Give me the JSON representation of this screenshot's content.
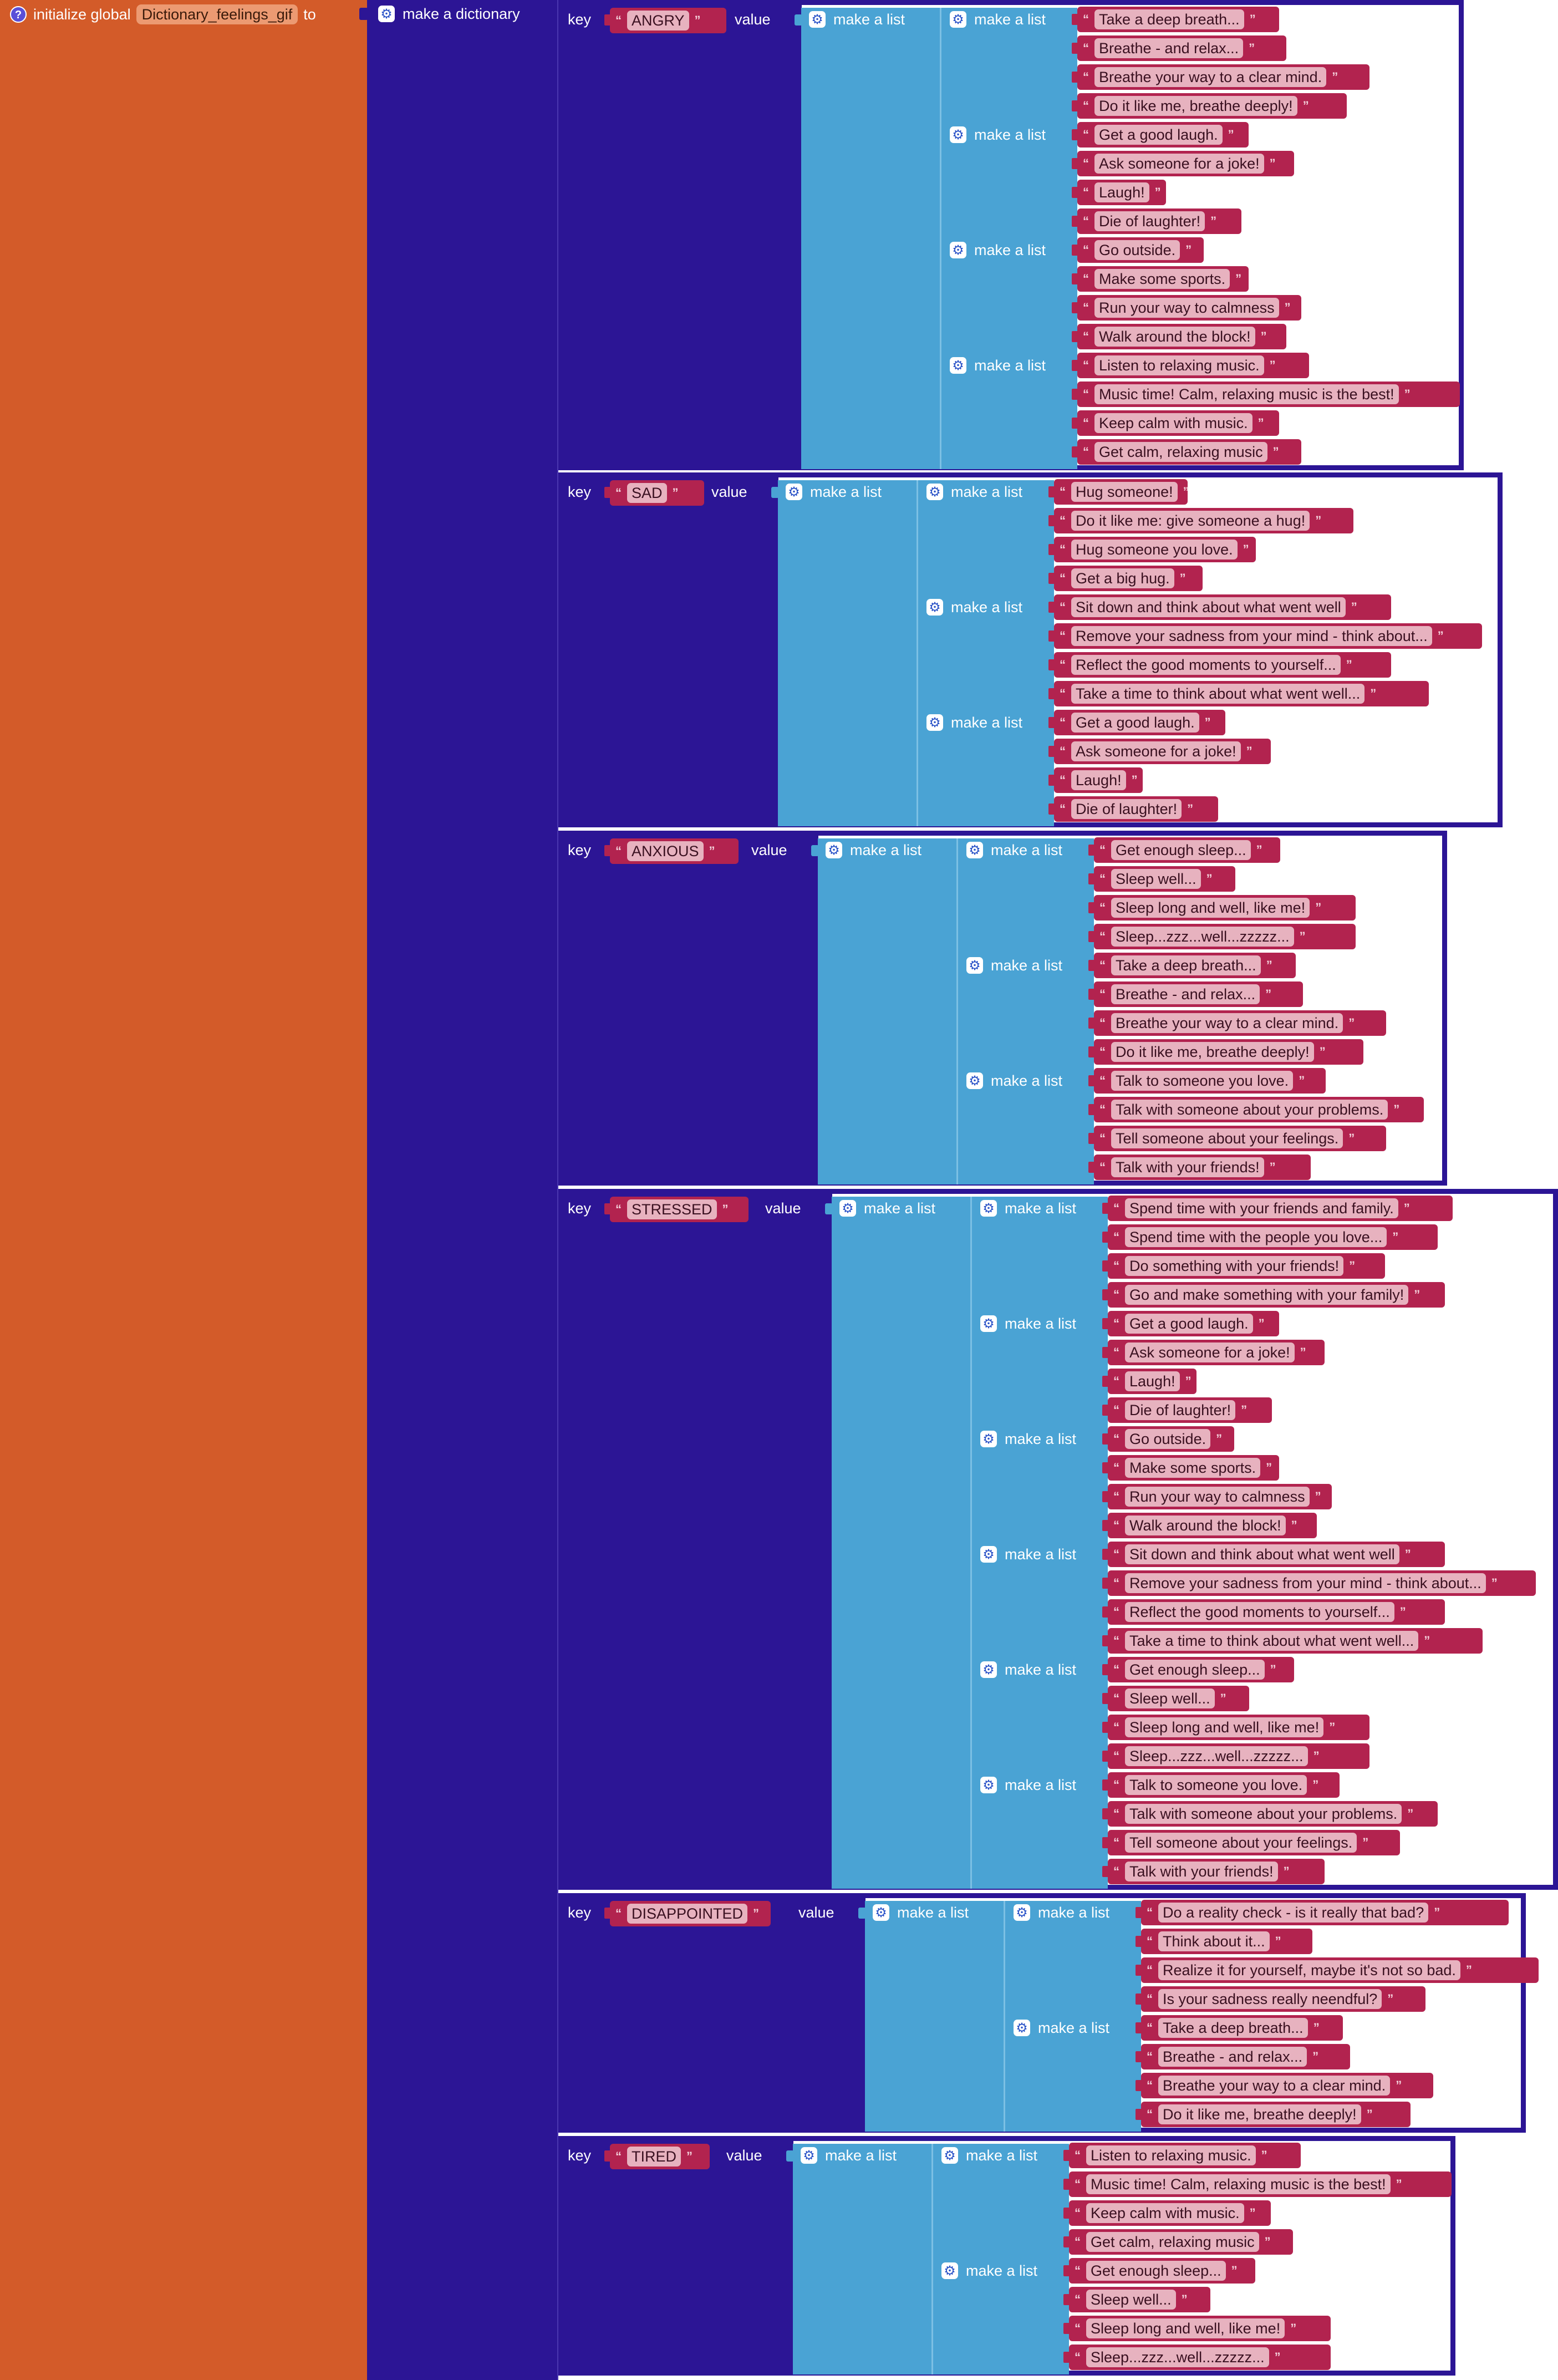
{
  "init": {
    "prefix": "initialize global",
    "variable": "Dictionary_feelings_gif",
    "suffix": "to",
    "icon": "question-icon"
  },
  "dict_label": "make a dictionary",
  "labels": {
    "key": "key",
    "value": "value",
    "make_list": "make a list"
  },
  "colors": {
    "init_block": "#d35b29",
    "dictionary_block": "#2c1595",
    "list_block": "#4aa3d4",
    "text_block": "#b2234f",
    "text_field": "#e7b2bf"
  },
  "pairs": [
    {
      "key": "ANGRY",
      "groups": [
        [
          "Take a deep breath...",
          "Breathe - and relax...",
          "Breathe your way to a clear mind.",
          "Do it like me, breathe deeply!"
        ],
        [
          "Get a good laugh.",
          "Ask someone for a joke!",
          "Laugh!",
          "Die of laughter!"
        ],
        [
          "Go outside.",
          "Make some sports.",
          "Run your way to calmness",
          "Walk around the block!"
        ],
        [
          "Listen to relaxing music.",
          "Music time! Calm, relaxing music is the best!",
          "Keep calm with music.",
          "Get calm, relaxing music"
        ]
      ]
    },
    {
      "key": "SAD",
      "groups": [
        [
          "Hug someone!",
          "Do it like me: give someone a hug!",
          "Hug someone you love.",
          "Get a big hug."
        ],
        [
          "Sit down and think about what went well",
          "Remove your sadness from your mind - think about...",
          "Reflect the good moments to yourself...",
          "Take a time to think about what went well..."
        ],
        [
          "Get a good laugh.",
          "Ask someone for a joke!",
          "Laugh!",
          "Die of laughter!"
        ]
      ]
    },
    {
      "key": "ANXIOUS",
      "groups": [
        [
          "Get enough sleep...",
          "Sleep well...",
          "Sleep long and well, like me!",
          "Sleep...zzz...well...zzzzz..."
        ],
        [
          "Take a deep breath...",
          "Breathe - and relax...",
          "Breathe your way to a clear mind.",
          "Do it like me, breathe deeply!"
        ],
        [
          "Talk to someone you love.",
          "Talk with someone about your problems.",
          "Tell someone about your feelings.",
          "Talk with your friends!"
        ]
      ]
    },
    {
      "key": "STRESSED",
      "groups": [
        [
          "Spend time with your friends and family.",
          "Spend time with the people you love...",
          "Do something with your friends!",
          "Go and make something with your family!"
        ],
        [
          "Get a good laugh.",
          "Ask someone for a joke!",
          "Laugh!",
          "Die of laughter!"
        ],
        [
          "Go outside.",
          "Make some sports.",
          "Run your way to calmness",
          "Walk around the block!"
        ],
        [
          "Sit down and think about what went well",
          "Remove your sadness from your mind - think about...",
          "Reflect the good moments to yourself...",
          "Take a time to think about what went well..."
        ],
        [
          "Get enough sleep...",
          "Sleep well...",
          "Sleep long and well, like me!",
          "Sleep...zzz...well...zzzzz..."
        ],
        [
          "Talk to someone you love.",
          "Talk with someone about your problems.",
          "Tell someone about your feelings.",
          "Talk with your friends!"
        ]
      ]
    },
    {
      "key": "DISAPPOINTED",
      "groups": [
        [
          "Do a reality check - is it really that bad?",
          "Think about it...",
          "Realize it for yourself, maybe it's not so bad.",
          "Is your sadness really neendful?"
        ],
        [
          "Take a deep breath...",
          "Breathe - and relax...",
          "Breathe your way to a clear mind.",
          "Do it like me, breathe deeply!"
        ]
      ]
    },
    {
      "key": "TIRED",
      "groups": [
        [
          "Listen to relaxing music.",
          "Music time! Calm, relaxing music is the best!",
          "Keep calm with music.",
          "Get calm, relaxing music"
        ],
        [
          "Get enough sleep...",
          "Sleep well...",
          "Sleep long and well, like me!",
          "Sleep...zzz...well...zzzzz..."
        ]
      ]
    }
  ]
}
